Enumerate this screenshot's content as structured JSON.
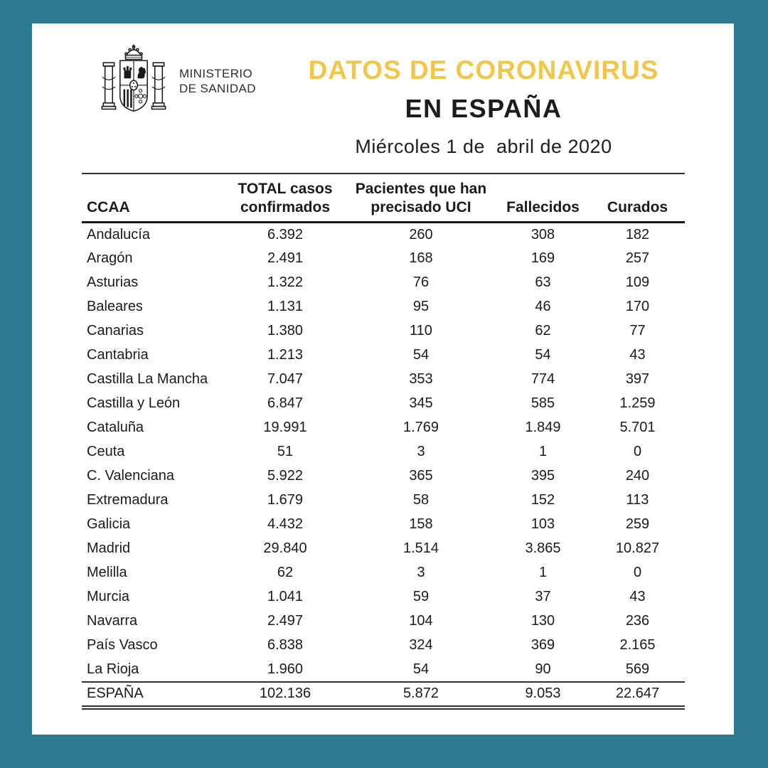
{
  "colors": {
    "frame_teal": "#2B7A8F",
    "title_yellow": "#F1C64B",
    "text_dark": "#1b1b1b"
  },
  "header": {
    "ministry": "MINISTERIO\nDE SANIDAD",
    "title": "DATOS DE CORONAVIRUS",
    "subtitle": "EN ESPAÑA",
    "date": "Miércoles 1 de  abril de 2020",
    "crest_icon": "spanish-coat-of-arms"
  },
  "table": {
    "columns": [
      "CCAA",
      "TOTAL casos confirmados",
      "Pacientes que han precisado UCI",
      "Fallecidos",
      "Curados"
    ],
    "rows": [
      [
        "Andalucía",
        "6.392",
        "260",
        "308",
        "182"
      ],
      [
        "Aragón",
        "2.491",
        "168",
        "169",
        "257"
      ],
      [
        "Asturias",
        "1.322",
        "76",
        "63",
        "109"
      ],
      [
        "Baleares",
        "1.131",
        "95",
        "46",
        "170"
      ],
      [
        "Canarias",
        "1.380",
        "110",
        "62",
        "77"
      ],
      [
        "Cantabria",
        "1.213",
        "54",
        "54",
        "43"
      ],
      [
        "Castilla La Mancha",
        "7.047",
        "353",
        "774",
        "397"
      ],
      [
        "Castilla y León",
        "6.847",
        "345",
        "585",
        "1.259"
      ],
      [
        "Cataluña",
        "19.991",
        "1.769",
        "1.849",
        "5.701"
      ],
      [
        "Ceuta",
        "51",
        "3",
        "1",
        "0"
      ],
      [
        "C. Valenciana",
        "5.922",
        "365",
        "395",
        "240"
      ],
      [
        "Extremadura",
        "1.679",
        "58",
        "152",
        "113"
      ],
      [
        "Galicia",
        "4.432",
        "158",
        "103",
        "259"
      ],
      [
        "Madrid",
        "29.840",
        "1.514",
        "3.865",
        "10.827"
      ],
      [
        "Melilla",
        "62",
        "3",
        "1",
        "0"
      ],
      [
        "Murcia",
        "1.041",
        "59",
        "37",
        "43"
      ],
      [
        "Navarra",
        "2.497",
        "104",
        "130",
        "236"
      ],
      [
        "País Vasco",
        "6.838",
        "324",
        "369",
        "2.165"
      ],
      [
        "La Rioja",
        "1.960",
        "54",
        "90",
        "569"
      ]
    ],
    "total_row": [
      "ESPAÑA",
      "102.136",
      "5.872",
      "9.053",
      "22.647"
    ]
  },
  "chart_data": {
    "type": "table",
    "title": "DATOS DE CORONAVIRUS EN ESPAÑA",
    "subtitle": "Miércoles 1 de abril de 2020",
    "columns": [
      "CCAA",
      "TOTAL casos confirmados",
      "Pacientes que han precisado UCI",
      "Fallecidos",
      "Curados"
    ],
    "rows": [
      {
        "ccaa": "Andalucía",
        "confirmados": 6392,
        "uci": 260,
        "fallecidos": 308,
        "curados": 182
      },
      {
        "ccaa": "Aragón",
        "confirmados": 2491,
        "uci": 168,
        "fallecidos": 169,
        "curados": 257
      },
      {
        "ccaa": "Asturias",
        "confirmados": 1322,
        "uci": 76,
        "fallecidos": 63,
        "curados": 109
      },
      {
        "ccaa": "Baleares",
        "confirmados": 1131,
        "uci": 95,
        "fallecidos": 46,
        "curados": 170
      },
      {
        "ccaa": "Canarias",
        "confirmados": 1380,
        "uci": 110,
        "fallecidos": 62,
        "curados": 77
      },
      {
        "ccaa": "Cantabria",
        "confirmados": 1213,
        "uci": 54,
        "fallecidos": 54,
        "curados": 43
      },
      {
        "ccaa": "Castilla La Mancha",
        "confirmados": 7047,
        "uci": 353,
        "fallecidos": 774,
        "curados": 397
      },
      {
        "ccaa": "Castilla y León",
        "confirmados": 6847,
        "uci": 345,
        "fallecidos": 585,
        "curados": 1259
      },
      {
        "ccaa": "Cataluña",
        "confirmados": 19991,
        "uci": 1769,
        "fallecidos": 1849,
        "curados": 5701
      },
      {
        "ccaa": "Ceuta",
        "confirmados": 51,
        "uci": 3,
        "fallecidos": 1,
        "curados": 0
      },
      {
        "ccaa": "C. Valenciana",
        "confirmados": 5922,
        "uci": 365,
        "fallecidos": 395,
        "curados": 240
      },
      {
        "ccaa": "Extremadura",
        "confirmados": 1679,
        "uci": 58,
        "fallecidos": 152,
        "curados": 113
      },
      {
        "ccaa": "Galicia",
        "confirmados": 4432,
        "uci": 158,
        "fallecidos": 103,
        "curados": 259
      },
      {
        "ccaa": "Madrid",
        "confirmados": 29840,
        "uci": 1514,
        "fallecidos": 3865,
        "curados": 10827
      },
      {
        "ccaa": "Melilla",
        "confirmados": 62,
        "uci": 3,
        "fallecidos": 1,
        "curados": 0
      },
      {
        "ccaa": "Murcia",
        "confirmados": 1041,
        "uci": 59,
        "fallecidos": 37,
        "curados": 43
      },
      {
        "ccaa": "Navarra",
        "confirmados": 2497,
        "uci": 104,
        "fallecidos": 130,
        "curados": 236
      },
      {
        "ccaa": "País Vasco",
        "confirmados": 6838,
        "uci": 324,
        "fallecidos": 369,
        "curados": 2165
      },
      {
        "ccaa": "La Rioja",
        "confirmados": 1960,
        "uci": 54,
        "fallecidos": 90,
        "curados": 569
      }
    ],
    "total": {
      "ccaa": "ESPAÑA",
      "confirmados": 102136,
      "uci": 5872,
      "fallecidos": 9053,
      "curados": 22647
    }
  }
}
